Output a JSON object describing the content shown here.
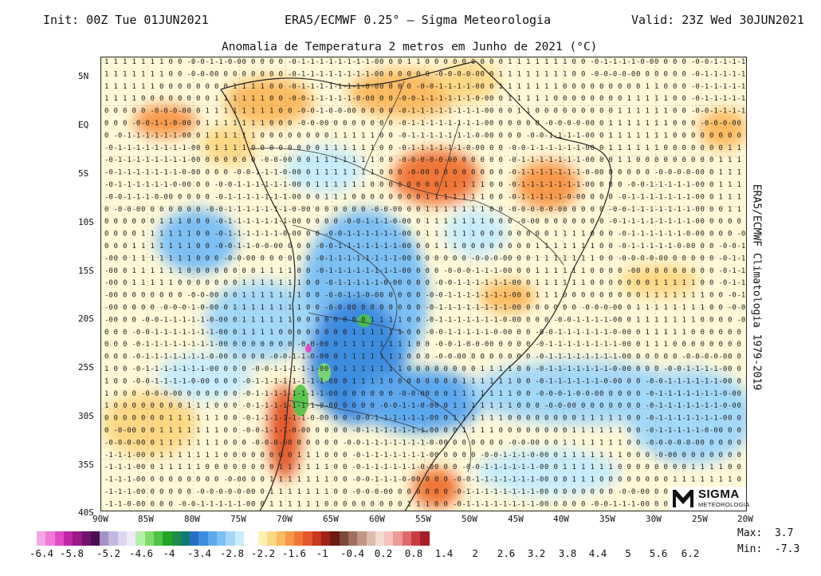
{
  "header": {
    "init": "Init: 00Z Tue 01JUN2021",
    "center": "ERA5/ECMWF 0.25° – Sigma Meteorologia",
    "valid": "Valid: 23Z Wed 30JUN2021"
  },
  "map_title": "Anomalia de Temperatura 2 metros em Junho de 2021 (°C)",
  "side_label": "ERA5/ECMWF Climatologia 1979-2019",
  "lat_ticks": [
    "5N",
    "EQ",
    "5S",
    "10S",
    "15S",
    "20S",
    "25S",
    "30S",
    "35S",
    "40S"
  ],
  "lon_ticks": [
    "90W",
    "85W",
    "80W",
    "75W",
    "70W",
    "65W",
    "60W",
    "55W",
    "50W",
    "45W",
    "40W",
    "35W",
    "30W",
    "25W",
    "20W"
  ],
  "colorbar": {
    "labels": [
      "-6.4",
      "-5.8",
      "-5.2",
      "-4.6",
      "-4",
      "-3.4",
      "-2.8",
      "-2.2",
      "-1.6",
      "-1",
      "-0.4",
      "0.2",
      "0.8",
      "1.4",
      "2",
      "2.6",
      "3.2",
      "3.8",
      "4.4",
      "5",
      "5.6",
      "6.2"
    ],
    "colors": [
      "#f7a6e8",
      "#f07ad8",
      "#e04cc4",
      "#c026a6",
      "#9a1a88",
      "#6e146c",
      "#4a1050",
      "#a493c8",
      "#c3b8e0",
      "#ddd6ee",
      "#eeeaf6",
      "#b4f0a8",
      "#7fdc6c",
      "#4cc444",
      "#24a424",
      "#1e8c48",
      "#0f7a70",
      "#2a6ec8",
      "#3c8ce0",
      "#5ca8ee",
      "#7cc0f4",
      "#a4d8f8",
      "#c8ecfa",
      "#ffffff",
      "#fff0b0",
      "#fdd884",
      "#fbbb60",
      "#f8984a",
      "#f07638",
      "#e35628",
      "#c8381c",
      "#a02414",
      "#6e1a0e",
      "#7a4a3c",
      "#9e6e5e",
      "#c09684",
      "#dcbcae",
      "#f2dcd2",
      "#f6c4c0",
      "#ec9894",
      "#de6c6c",
      "#c83c40",
      "#a81e28"
    ],
    "scale_min": -6.4,
    "scale_max": 6.2
  },
  "stats": {
    "max_label": "Max:",
    "max_value": "3.7",
    "min_label": "Min:",
    "min_value": "-7.3"
  },
  "logo": {
    "word": "SIGMA",
    "sub": "METEOROLOGIA"
  }
}
